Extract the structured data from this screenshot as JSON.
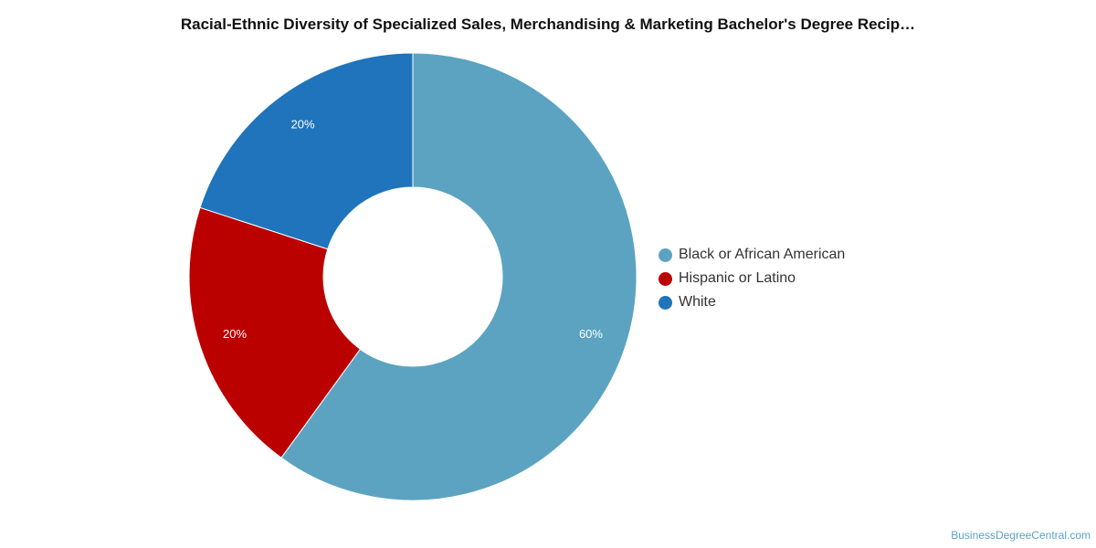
{
  "chart_data": {
    "type": "pie",
    "variant": "donut",
    "title": "Racial-Ethnic Diversity of Specialized Sales, Merchandising & Marketing Bachelor's Degree Recip…",
    "categories": [
      "Black or African American",
      "Hispanic or Latino",
      "White"
    ],
    "values": [
      60,
      20,
      20
    ],
    "value_labels": [
      "60%",
      "20%",
      "20%"
    ],
    "colors": [
      "#5ba3c1",
      "#bb0000",
      "#1f74bb"
    ],
    "legend_position": "right",
    "start_angle": "top, clockwise"
  },
  "source": {
    "text": "BusinessDegreeCentral.com"
  }
}
